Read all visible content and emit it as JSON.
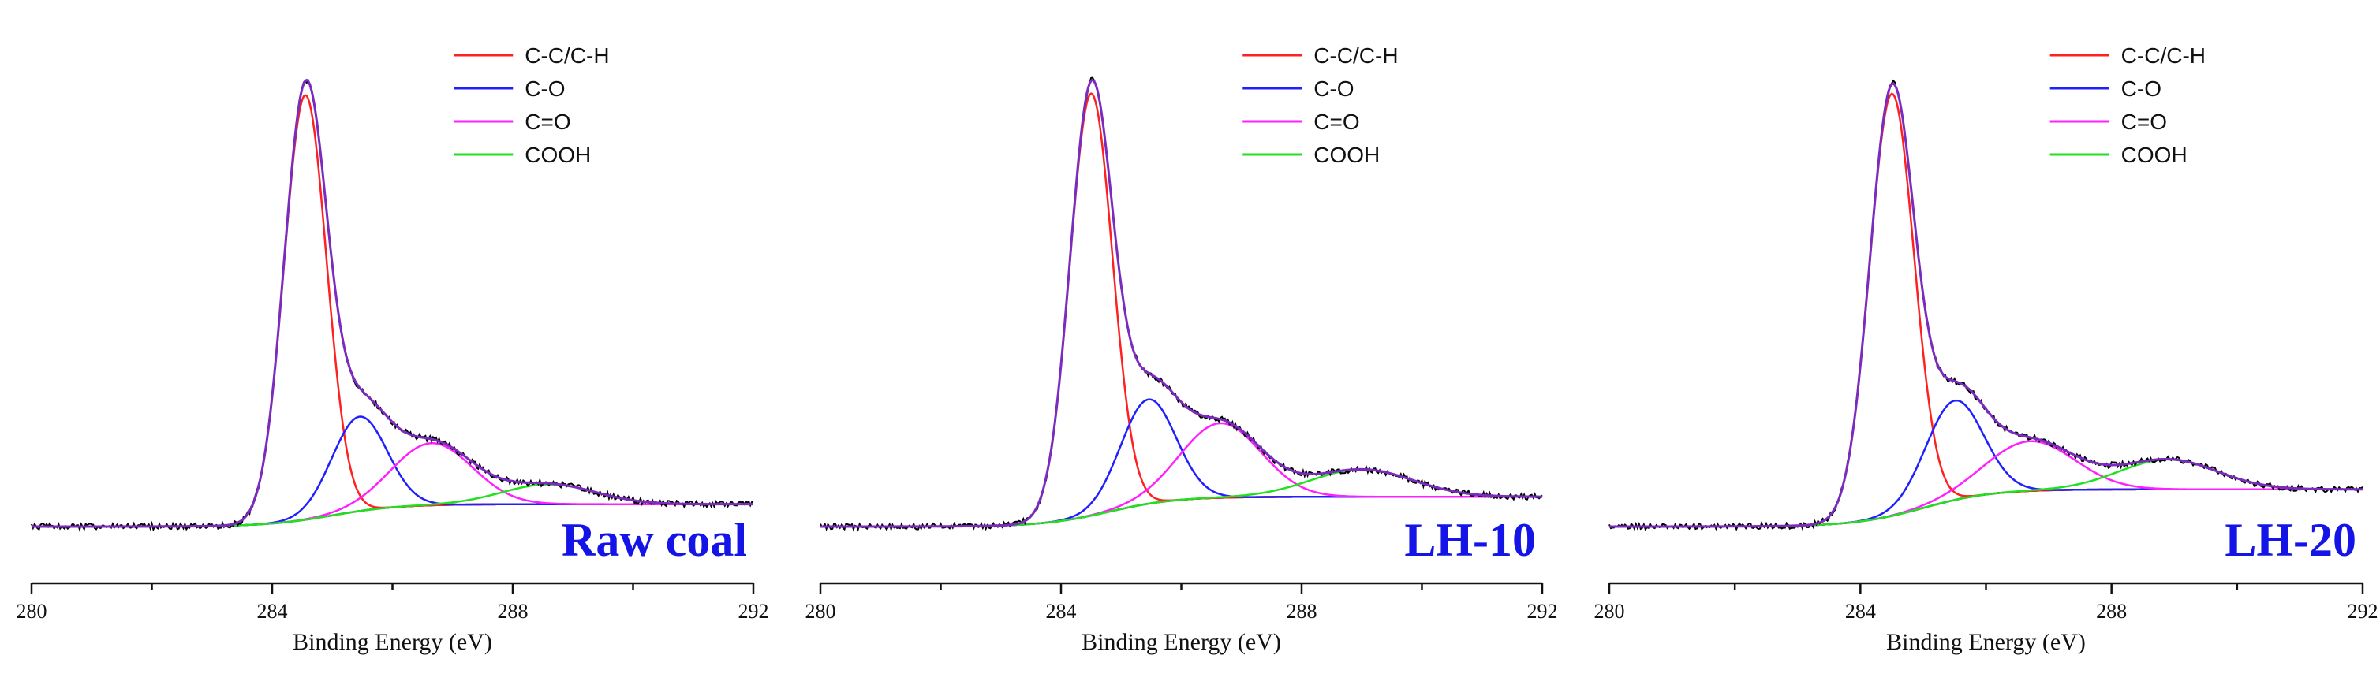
{
  "chart_data": [
    {
      "type": "line",
      "title": "Raw coal",
      "xlabel": "Binding Energy (eV)",
      "ylabel": "",
      "xlim": [
        280,
        292
      ],
      "ylim": [
        0,
        1.0
      ],
      "xticks": [
        "280",
        "284",
        "288",
        "292"
      ],
      "legend": [
        "C-C/C-H",
        "C-O",
        "C=O",
        "COOH"
      ],
      "components": [
        {
          "name": "C-C/C-H",
          "color": "#ff2020",
          "center": 284.55,
          "amplitude": 0.855,
          "width": 0.5
        },
        {
          "name": "C-O",
          "color": "#2020ff",
          "center": 285.45,
          "amplitude": 0.19,
          "width": 0.65
        },
        {
          "name": "C=O",
          "color": "#ff20ff",
          "center": 286.65,
          "amplitude": 0.125,
          "width": 0.95
        },
        {
          "name": "COOH",
          "color": "#20e020",
          "center": 288.6,
          "amplitude": 0.04,
          "width": 1.1
        }
      ],
      "background": {
        "low": 0.0,
        "high": 0.045,
        "step_center": 285.0
      },
      "envelope_color": "#7b2cbf",
      "raw_color": "#000000"
    },
    {
      "type": "line",
      "title": "LH-10",
      "xlabel": "Binding Energy (eV)",
      "ylabel": "",
      "xlim": [
        280,
        292
      ],
      "ylim": [
        0,
        1.0
      ],
      "xticks": [
        "280",
        "284",
        "288",
        "292"
      ],
      "legend": [
        "C-C/C-H",
        "C-O",
        "C=O",
        "COOH"
      ],
      "components": [
        {
          "name": "C-C/C-H",
          "color": "#ff2020",
          "center": 284.5,
          "amplitude": 0.85,
          "width": 0.5
        },
        {
          "name": "C-O",
          "color": "#2020ff",
          "center": 285.45,
          "amplitude": 0.21,
          "width": 0.65
        },
        {
          "name": "C=O",
          "color": "#ff20ff",
          "center": 286.65,
          "amplitude": 0.15,
          "width": 0.95
        },
        {
          "name": "COOH",
          "color": "#20e020",
          "center": 289.0,
          "amplitude": 0.055,
          "width": 1.2
        }
      ],
      "background": {
        "low": 0.0,
        "high": 0.06,
        "step_center": 284.8
      },
      "envelope_color": "#7b2cbf",
      "raw_color": "#000000"
    },
    {
      "type": "line",
      "title": "LH-20",
      "xlabel": "Binding Energy (eV)",
      "ylabel": "",
      "xlim": [
        280,
        292
      ],
      "ylim": [
        0,
        1.0
      ],
      "xticks": [
        "280",
        "284",
        "288",
        "292"
      ],
      "legend": [
        "C-C/C-H",
        "C-O",
        "C=O",
        "COOH"
      ],
      "components": [
        {
          "name": "C-C/C-H",
          "color": "#ff2020",
          "center": 284.5,
          "amplitude": 0.85,
          "width": 0.5
        },
        {
          "name": "C-O",
          "color": "#2020ff",
          "center": 285.5,
          "amplitude": 0.2,
          "width": 0.65
        },
        {
          "name": "C=O",
          "color": "#ff20ff",
          "center": 286.7,
          "amplitude": 0.1,
          "width": 1.0
        },
        {
          "name": "COOH",
          "color": "#20e020",
          "center": 288.9,
          "amplitude": 0.06,
          "width": 1.1
        }
      ],
      "background": {
        "low": 0.0,
        "high": 0.075,
        "step_center": 285.0
      },
      "envelope_color": "#7b2cbf",
      "raw_color": "#000000"
    }
  ]
}
